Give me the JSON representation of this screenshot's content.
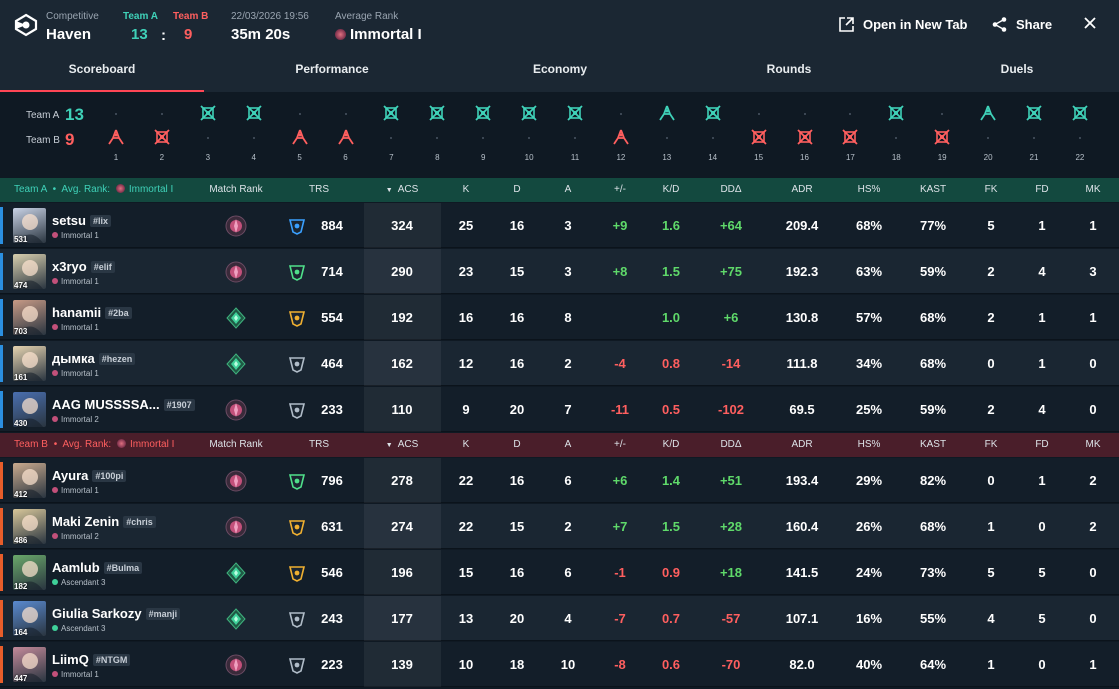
{
  "header": {
    "mode": "Competitive",
    "map": "Haven",
    "teamA_label": "Team A",
    "teamB_label": "Team B",
    "teamA_score": "13",
    "teamB_score": "9",
    "separator": ":",
    "date": "22/03/2026 19:56",
    "duration": "35m 20s",
    "avg_rank_label": "Average Rank",
    "avg_rank": "Immortal I",
    "open_new_tab": "Open in New Tab",
    "share": "Share"
  },
  "tabs": [
    "Scoreboard",
    "Performance",
    "Economy",
    "Rounds",
    "Duels"
  ],
  "timeline": {
    "teamA_label": "Team A",
    "teamB_label": "Team B",
    "teamA_score": "13",
    "teamB_score": "9",
    "rounds": [
      {
        "n": "1",
        "winner": "B",
        "type": "elim"
      },
      {
        "n": "2",
        "winner": "B",
        "type": "defuse"
      },
      {
        "n": "3",
        "winner": "A",
        "type": "defuse"
      },
      {
        "n": "4",
        "winner": "A",
        "type": "defuse"
      },
      {
        "n": "5",
        "winner": "B",
        "type": "elim"
      },
      {
        "n": "6",
        "winner": "B",
        "type": "elim"
      },
      {
        "n": "7",
        "winner": "A",
        "type": "defuse"
      },
      {
        "n": "8",
        "winner": "A",
        "type": "defuse"
      },
      {
        "n": "9",
        "winner": "A",
        "type": "defuse"
      },
      {
        "n": "10",
        "winner": "A",
        "type": "defuse"
      },
      {
        "n": "11",
        "winner": "A",
        "type": "defuse"
      },
      {
        "n": "12",
        "winner": "B",
        "type": "elim"
      },
      {
        "n": "13",
        "winner": "A",
        "type": "elim"
      },
      {
        "n": "14",
        "winner": "A",
        "type": "defuse"
      },
      {
        "n": "15",
        "winner": "B",
        "type": "defuse"
      },
      {
        "n": "16",
        "winner": "B",
        "type": "defuse"
      },
      {
        "n": "17",
        "winner": "B",
        "type": "defuse"
      },
      {
        "n": "18",
        "winner": "A",
        "type": "defuse"
      },
      {
        "n": "19",
        "winner": "B",
        "type": "defuse"
      },
      {
        "n": "20",
        "winner": "A",
        "type": "elim"
      },
      {
        "n": "21",
        "winner": "A",
        "type": "defuse"
      },
      {
        "n": "22",
        "winner": "A",
        "type": "defuse"
      }
    ]
  },
  "columns": {
    "match_rank": "Match Rank",
    "trs": "TRS",
    "acs": "ACS",
    "k": "K",
    "d": "D",
    "a": "A",
    "pm": "+/-",
    "kd": "K/D",
    "dda": "DDΔ",
    "adr": "ADR",
    "hs": "HS%",
    "kast": "KAST",
    "fk": "FK",
    "fd": "FD",
    "mk": "MK"
  },
  "teamA": {
    "label": "Team A",
    "bullet": "•",
    "avg_rank_label": "Avg. Rank:",
    "avg_rank": "Immortal I",
    "players": [
      {
        "name": "setsu",
        "tag": "#lix",
        "level": "531",
        "rank": "Immortal 1",
        "trs": "884",
        "acs": "324",
        "k": "25",
        "d": "16",
        "a": "3",
        "pm": "+9",
        "kd": "1.6",
        "dda": "+64",
        "adr": "209.4",
        "hs": "68%",
        "kast": "77%",
        "fk": "5",
        "fd": "1",
        "mk": "1",
        "mr": "imm",
        "trs_tier": "blue",
        "av": "#c9d3e6"
      },
      {
        "name": "x3ryo",
        "tag": "#elif",
        "level": "474",
        "rank": "Immortal 1",
        "trs": "714",
        "acs": "290",
        "k": "23",
        "d": "15",
        "a": "3",
        "pm": "+8",
        "kd": "1.5",
        "dda": "+75",
        "adr": "192.3",
        "hs": "63%",
        "kast": "59%",
        "fk": "2",
        "fd": "4",
        "mk": "3",
        "mr": "imm",
        "trs_tier": "green",
        "av": "#d8cfae"
      },
      {
        "name": "hanamii",
        "tag": "#2ba",
        "level": "703",
        "rank": "Immortal 1",
        "trs": "554",
        "acs": "192",
        "k": "16",
        "d": "16",
        "a": "8",
        "pm": "",
        "kd": "1.0",
        "dda": "+6",
        "adr": "130.8",
        "hs": "57%",
        "kast": "68%",
        "fk": "2",
        "fd": "1",
        "mk": "1",
        "mr": "asc",
        "trs_tier": "gold",
        "av": "#c79a86"
      },
      {
        "name": "дымка",
        "tag": "#hezen",
        "level": "161",
        "rank": "Immortal 1",
        "trs": "464",
        "acs": "162",
        "k": "12",
        "d": "16",
        "a": "2",
        "pm": "-4",
        "kd": "0.8",
        "dda": "-14",
        "adr": "111.8",
        "hs": "34%",
        "kast": "68%",
        "fk": "0",
        "fd": "1",
        "mk": "0",
        "mr": "asc",
        "trs_tier": "silver",
        "av": "#e5d3b0"
      },
      {
        "name": "AAG MUSSSSA...",
        "tag": "#1907",
        "level": "430",
        "rank": "Immortal 2",
        "trs": "233",
        "acs": "110",
        "k": "9",
        "d": "20",
        "a": "7",
        "pm": "-11",
        "kd": "0.5",
        "dda": "-102",
        "adr": "69.5",
        "hs": "25%",
        "kast": "59%",
        "fk": "2",
        "fd": "4",
        "mk": "0",
        "mr": "imm",
        "trs_tier": "silver",
        "av": "#4a6fb0"
      }
    ]
  },
  "teamB": {
    "label": "Team B",
    "bullet": "•",
    "avg_rank_label": "Avg. Rank:",
    "avg_rank": "Immortal I",
    "players": [
      {
        "name": "Ayura",
        "tag": "#100pi",
        "level": "412",
        "rank": "Immortal 1",
        "trs": "796",
        "acs": "278",
        "k": "22",
        "d": "16",
        "a": "6",
        "pm": "+6",
        "kd": "1.4",
        "dda": "+51",
        "adr": "193.4",
        "hs": "29%",
        "kast": "82%",
        "fk": "0",
        "fd": "1",
        "mk": "2",
        "mr": "imm",
        "trs_tier": "green",
        "av": "#c9aa8e"
      },
      {
        "name": "Maki Zenin",
        "tag": "#chris",
        "level": "486",
        "rank": "Immortal 2",
        "trs": "631",
        "acs": "274",
        "k": "22",
        "d": "15",
        "a": "2",
        "pm": "+7",
        "kd": "1.5",
        "dda": "+28",
        "adr": "160.4",
        "hs": "26%",
        "kast": "68%",
        "fk": "1",
        "fd": "0",
        "mk": "2",
        "mr": "imm",
        "trs_tier": "gold",
        "av": "#d8c79a"
      },
      {
        "name": "Aamlub",
        "tag": "#Bulma",
        "level": "182",
        "rank": "Ascendant 3",
        "trs": "546",
        "acs": "196",
        "k": "15",
        "d": "16",
        "a": "6",
        "pm": "-1",
        "kd": "0.9",
        "dda": "+18",
        "adr": "141.5",
        "hs": "24%",
        "kast": "73%",
        "fk": "5",
        "fd": "5",
        "mk": "0",
        "mr": "asc",
        "trs_tier": "gold",
        "av": "#6aa86a"
      },
      {
        "name": "Giulia Sarkozy",
        "tag": "#manji",
        "level": "164",
        "rank": "Ascendant 3",
        "trs": "243",
        "acs": "177",
        "k": "13",
        "d": "20",
        "a": "4",
        "pm": "-7",
        "kd": "0.7",
        "dda": "-57",
        "adr": "107.1",
        "hs": "16%",
        "kast": "55%",
        "fk": "4",
        "fd": "5",
        "mk": "0",
        "mr": "asc",
        "trs_tier": "silver",
        "av": "#5a8ad0"
      },
      {
        "name": "LiimQ",
        "tag": "#NTGM",
        "level": "447",
        "rank": "Immortal 1",
        "trs": "223",
        "acs": "139",
        "k": "10",
        "d": "18",
        "a": "10",
        "pm": "-8",
        "kd": "0.6",
        "dda": "-70",
        "adr": "82.0",
        "hs": "40%",
        "kast": "64%",
        "fk": "1",
        "fd": "0",
        "mk": "1",
        "mr": "imm",
        "trs_tier": "silver",
        "av": "#c48a9a"
      }
    ]
  },
  "colors": {
    "teamA": "#3fd1b8",
    "teamB": "#ff5f5f",
    "positive": "#5fd96a",
    "negative": "#ff5f5f",
    "accentA": "#2b8fe0",
    "accentB": "#e85d2a"
  }
}
